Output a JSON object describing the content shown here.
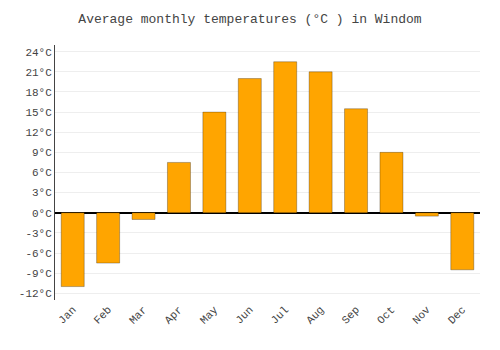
{
  "chart_data": {
    "type": "bar",
    "title": "Average monthly temperatures (°C ) in Windom",
    "categories": [
      "Jan",
      "Feb",
      "Mar",
      "Apr",
      "May",
      "Jun",
      "Jul",
      "Aug",
      "Sep",
      "Oct",
      "Nov",
      "Dec"
    ],
    "values": [
      -11,
      -7.5,
      -1,
      7.5,
      15,
      20,
      22.5,
      21,
      15.5,
      9,
      -0.5,
      -8.5
    ],
    "color": "#FFA500",
    "ylim": [
      -13,
      25
    ],
    "yticks": [
      {
        "value": -12,
        "label": "-12°C"
      },
      {
        "value": -9,
        "label": "-9°C"
      },
      {
        "value": -6,
        "label": "-6°C"
      },
      {
        "value": -3,
        "label": "-3°C"
      },
      {
        "value": 0,
        "label": "0°C"
      },
      {
        "value": 3,
        "label": "3°C"
      },
      {
        "value": 6,
        "label": "6°C"
      },
      {
        "value": 9,
        "label": "9°C"
      },
      {
        "value": 12,
        "label": "12°C"
      },
      {
        "value": 15,
        "label": "15°C"
      },
      {
        "value": 18,
        "label": "18°C"
      },
      {
        "value": 21,
        "label": "21°C"
      },
      {
        "value": 24,
        "label": "24°C"
      }
    ],
    "grid": true
  }
}
